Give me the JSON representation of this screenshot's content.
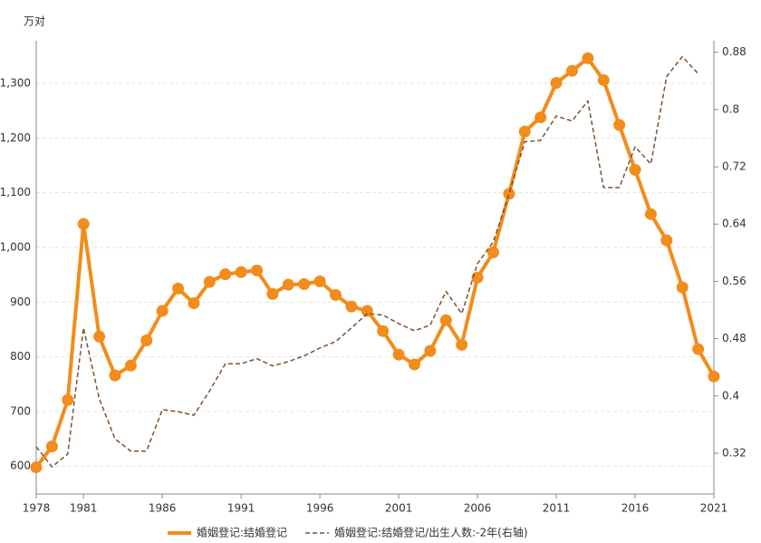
{
  "chart_data": {
    "type": "line",
    "y_label": "万对",
    "x": [
      1978,
      1979,
      1980,
      1981,
      1982,
      1983,
      1984,
      1985,
      1986,
      1987,
      1988,
      1989,
      1990,
      1991,
      1992,
      1993,
      1994,
      1995,
      1996,
      1997,
      1998,
      1999,
      2000,
      2001,
      2002,
      2003,
      2004,
      2005,
      2006,
      2007,
      2008,
      2009,
      2010,
      2011,
      2012,
      2013,
      2014,
      2015,
      2016,
      2017,
      2018,
      2019,
      2020,
      2021
    ],
    "xlim": [
      1978,
      2021
    ],
    "xticks": [
      1978,
      1981,
      1986,
      1991,
      1996,
      2001,
      2006,
      2011,
      2016,
      2021
    ],
    "ylim": [
      549,
      1378
    ],
    "yticks": [
      600,
      700,
      800,
      900,
      {
        "value": 1000,
        "label": "1,000"
      },
      {
        "value": 1100,
        "label": "1,100"
      },
      {
        "value": 1200,
        "label": "1,200"
      },
      {
        "value": 1300,
        "label": "1,300"
      }
    ],
    "y2lim": [
      0.263,
      0.896
    ],
    "y2ticks": [
      0.32,
      0.4,
      0.48,
      0.56,
      0.64,
      0.72,
      0.8,
      0.88
    ],
    "grid": true,
    "legend": "bottom",
    "series": [
      {
        "name": "婚姻登记:结婚登记",
        "color": "#f28c1a",
        "markers": true,
        "values": [
          598,
          636,
          721,
          1043,
          837,
          766,
          784,
          830,
          884,
          925,
          898,
          937,
          951,
          955,
          958,
          915,
          932,
          933,
          938,
          913,
          892,
          884,
          847,
          804,
          786,
          811,
          867,
          822,
          945,
          991,
          1098,
          1212,
          1238,
          1301,
          1323,
          1346,
          1306,
          1224,
          1142,
          1061,
          1013,
          927,
          814,
          764
        ]
      },
      {
        "name": "婚姻登记:结婚登记/出生人数:-2年(右轴)",
        "color": "#7a5230",
        "axis": "y2",
        "dashed": true,
        "values": [
          0.329,
          0.301,
          0.319,
          0.495,
          0.396,
          0.34,
          0.323,
          0.323,
          0.381,
          0.378,
          0.373,
          0.407,
          0.445,
          0.445,
          0.452,
          0.442,
          0.448,
          0.456,
          0.467,
          0.476,
          0.495,
          0.515,
          0.513,
          0.501,
          0.491,
          0.499,
          0.546,
          0.515,
          0.585,
          0.615,
          0.682,
          0.755,
          0.757,
          0.791,
          0.784,
          0.812,
          0.691,
          0.691,
          0.748,
          0.724,
          0.846,
          0.874,
          0.85,
          null
        ]
      }
    ]
  }
}
